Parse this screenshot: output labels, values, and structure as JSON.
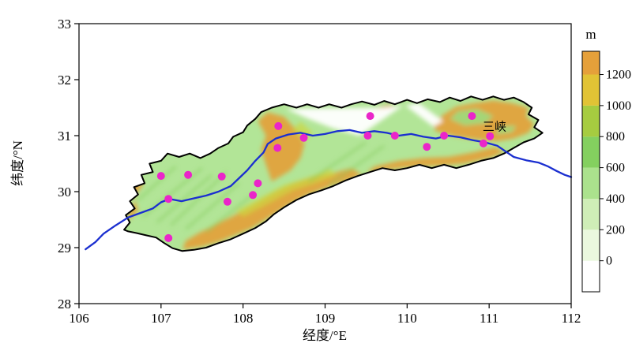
{
  "figure": {
    "xlabel": "经度/°E",
    "ylabel": "纬度/°N",
    "annotation": {
      "text": "三峡",
      "lon": 110.92,
      "lat": 31.09
    }
  },
  "axes": {
    "lon_min": 106,
    "lon_max": 112,
    "lat_min": 28,
    "lat_max": 33,
    "x_ticks": [
      106,
      107,
      108,
      109,
      110,
      111,
      112
    ],
    "y_ticks": [
      28,
      29,
      30,
      31,
      32,
      33
    ]
  },
  "colorbar": {
    "title": "m",
    "min": -200,
    "max": 1350,
    "tick_values": [
      0,
      200,
      400,
      600,
      800,
      1000,
      1200
    ],
    "segments": [
      {
        "v0": -200,
        "v1": 0,
        "color": "#ffffff"
      },
      {
        "v0": 0,
        "v1": 200,
        "color": "#eaf8de"
      },
      {
        "v0": 200,
        "v1": 400,
        "color": "#cfeeb7"
      },
      {
        "v0": 400,
        "v1": 600,
        "color": "#abe28d"
      },
      {
        "v0": 600,
        "v1": 800,
        "color": "#84d05f"
      },
      {
        "v0": 800,
        "v1": 1000,
        "color": "#a6cc40"
      },
      {
        "v0": 1000,
        "v1": 1200,
        "color": "#e1c335"
      },
      {
        "v0": 1200,
        "v1": 1350,
        "color": "#e5a03a"
      }
    ]
  },
  "map": {
    "colors": {
      "base": "#b2e597",
      "orange": "#e2a23c",
      "yellow": "#cdd63e",
      "green_patch": "#9ddb7e",
      "ridge": "#7fc857",
      "white": "#ffffff",
      "river": "#1b2fd0",
      "station": "#ea25c9",
      "outline": "#000000"
    },
    "basin_outline": [
      [
        106.55,
        29.32
      ],
      [
        106.62,
        29.45
      ],
      [
        106.57,
        29.58
      ],
      [
        106.68,
        29.7
      ],
      [
        106.62,
        29.83
      ],
      [
        106.72,
        29.95
      ],
      [
        106.67,
        30.08
      ],
      [
        106.8,
        30.15
      ],
      [
        106.76,
        30.3
      ],
      [
        106.9,
        30.35
      ],
      [
        106.86,
        30.5
      ],
      [
        107.0,
        30.55
      ],
      [
        107.08,
        30.68
      ],
      [
        107.22,
        30.62
      ],
      [
        107.35,
        30.68
      ],
      [
        107.48,
        30.6
      ],
      [
        107.6,
        30.68
      ],
      [
        107.7,
        30.78
      ],
      [
        107.82,
        30.86
      ],
      [
        107.88,
        30.98
      ],
      [
        108.0,
        31.06
      ],
      [
        108.05,
        31.18
      ],
      [
        108.15,
        31.3
      ],
      [
        108.22,
        31.42
      ],
      [
        108.35,
        31.5
      ],
      [
        108.5,
        31.56
      ],
      [
        108.65,
        31.5
      ],
      [
        108.78,
        31.56
      ],
      [
        108.92,
        31.5
      ],
      [
        109.05,
        31.56
      ],
      [
        109.2,
        31.5
      ],
      [
        109.32,
        31.56
      ],
      [
        109.45,
        31.61
      ],
      [
        109.6,
        31.55
      ],
      [
        109.72,
        31.62
      ],
      [
        109.85,
        31.56
      ],
      [
        110.0,
        31.64
      ],
      [
        110.12,
        31.58
      ],
      [
        110.25,
        31.65
      ],
      [
        110.4,
        31.6
      ],
      [
        110.52,
        31.68
      ],
      [
        110.65,
        31.62
      ],
      [
        110.78,
        31.7
      ],
      [
        110.92,
        31.64
      ],
      [
        111.05,
        31.7
      ],
      [
        111.18,
        31.64
      ],
      [
        111.3,
        31.68
      ],
      [
        111.42,
        31.6
      ],
      [
        111.52,
        31.5
      ],
      [
        111.48,
        31.38
      ],
      [
        111.6,
        31.28
      ],
      [
        111.55,
        31.15
      ],
      [
        111.65,
        31.05
      ],
      [
        111.55,
        30.95
      ],
      [
        111.42,
        30.88
      ],
      [
        111.3,
        30.78
      ],
      [
        111.18,
        30.68
      ],
      [
        111.05,
        30.6
      ],
      [
        110.9,
        30.55
      ],
      [
        110.75,
        30.48
      ],
      [
        110.6,
        30.42
      ],
      [
        110.45,
        30.48
      ],
      [
        110.3,
        30.42
      ],
      [
        110.15,
        30.48
      ],
      [
        110.0,
        30.42
      ],
      [
        109.85,
        30.38
      ],
      [
        109.7,
        30.42
      ],
      [
        109.55,
        30.35
      ],
      [
        109.4,
        30.28
      ],
      [
        109.25,
        30.2
      ],
      [
        109.1,
        30.1
      ],
      [
        108.95,
        30.02
      ],
      [
        108.8,
        29.95
      ],
      [
        108.65,
        29.85
      ],
      [
        108.5,
        29.72
      ],
      [
        108.38,
        29.6
      ],
      [
        108.28,
        29.47
      ],
      [
        108.15,
        29.35
      ],
      [
        108.0,
        29.25
      ],
      [
        107.85,
        29.15
      ],
      [
        107.7,
        29.08
      ],
      [
        107.55,
        29.0
      ],
      [
        107.4,
        28.96
      ],
      [
        107.26,
        28.94
      ],
      [
        107.14,
        28.99
      ],
      [
        107.04,
        29.08
      ],
      [
        106.94,
        29.18
      ],
      [
        106.82,
        29.22
      ],
      [
        106.7,
        29.26
      ],
      [
        106.6,
        29.29
      ]
    ],
    "orange_patches": [
      [
        [
          107.26,
          28.96
        ],
        [
          107.5,
          29.02
        ],
        [
          107.7,
          29.1
        ],
        [
          107.9,
          29.22
        ],
        [
          108.1,
          29.34
        ],
        [
          108.3,
          29.52
        ],
        [
          108.45,
          29.66
        ],
        [
          108.6,
          29.8
        ],
        [
          108.8,
          29.95
        ],
        [
          109.0,
          30.06
        ],
        [
          109.2,
          30.16
        ],
        [
          109.45,
          30.3
        ],
        [
          109.32,
          30.42
        ],
        [
          109.08,
          30.32
        ],
        [
          108.85,
          30.27
        ],
        [
          108.6,
          30.14
        ],
        [
          108.4,
          30.0
        ],
        [
          108.24,
          29.86
        ],
        [
          108.05,
          29.7
        ],
        [
          107.86,
          29.55
        ],
        [
          107.65,
          29.4
        ],
        [
          107.46,
          29.26
        ],
        [
          107.3,
          29.12
        ]
      ],
      [
        [
          108.35,
          30.18
        ],
        [
          108.58,
          30.38
        ],
        [
          108.7,
          30.6
        ],
        [
          108.75,
          30.85
        ],
        [
          108.65,
          31.1
        ],
        [
          108.5,
          31.34
        ],
        [
          108.3,
          31.42
        ],
        [
          108.18,
          31.26
        ],
        [
          108.28,
          31.0
        ],
        [
          108.22,
          30.74
        ],
        [
          108.28,
          30.48
        ]
      ],
      [
        [
          110.35,
          31.08
        ],
        [
          110.6,
          30.98
        ],
        [
          110.85,
          30.93
        ],
        [
          111.1,
          30.9
        ],
        [
          111.3,
          30.95
        ],
        [
          111.48,
          31.05
        ],
        [
          111.55,
          31.2
        ],
        [
          111.45,
          31.35
        ],
        [
          111.48,
          31.5
        ],
        [
          111.28,
          31.58
        ],
        [
          111.05,
          31.63
        ],
        [
          110.82,
          31.58
        ],
        [
          110.6,
          31.52
        ],
        [
          110.45,
          31.38
        ],
        [
          110.3,
          31.22
        ]
      ],
      [
        [
          109.62,
          31.4
        ],
        [
          109.88,
          31.5
        ],
        [
          109.78,
          31.56
        ],
        [
          109.58,
          31.48
        ]
      ],
      [
        [
          106.6,
          29.48
        ],
        [
          106.72,
          29.66
        ],
        [
          106.67,
          29.92
        ],
        [
          106.78,
          30.12
        ],
        [
          106.72,
          30.3
        ],
        [
          106.63,
          30.05
        ],
        [
          106.68,
          29.82
        ],
        [
          106.6,
          29.62
        ]
      ],
      [
        [
          109.5,
          30.33
        ],
        [
          109.8,
          30.4
        ],
        [
          110.1,
          30.45
        ],
        [
          110.4,
          30.46
        ],
        [
          110.7,
          30.5
        ],
        [
          111.0,
          30.6
        ],
        [
          111.18,
          30.7
        ],
        [
          111.08,
          30.8
        ],
        [
          110.8,
          30.7
        ],
        [
          110.5,
          30.62
        ],
        [
          110.2,
          30.6
        ],
        [
          109.9,
          30.55
        ],
        [
          109.6,
          30.45
        ]
      ]
    ],
    "yellow_patches": [
      [
        [
          108.0,
          29.55
        ],
        [
          108.3,
          29.78
        ],
        [
          108.6,
          30.02
        ],
        [
          108.9,
          30.16
        ],
        [
          109.15,
          30.3
        ],
        [
          109.05,
          30.4
        ],
        [
          108.78,
          30.24
        ],
        [
          108.5,
          30.12
        ],
        [
          108.22,
          29.9
        ],
        [
          107.92,
          29.66
        ]
      ],
      [
        [
          108.6,
          31.1
        ],
        [
          108.75,
          30.9
        ],
        [
          108.85,
          31.05
        ],
        [
          108.7,
          31.25
        ]
      ]
    ],
    "green_patches": [
      [
        [
          110.52,
          31.3
        ],
        [
          110.7,
          31.18
        ],
        [
          110.95,
          31.22
        ],
        [
          111.05,
          31.35
        ],
        [
          110.85,
          31.48
        ],
        [
          110.62,
          31.44
        ]
      ],
      [
        [
          111.08,
          31.02
        ],
        [
          111.28,
          31.06
        ],
        [
          111.33,
          31.18
        ],
        [
          111.13,
          31.16
        ]
      ]
    ],
    "white_patches": [
      [
        [
          108.52,
          31.48
        ],
        [
          109.7,
          31.5
        ],
        [
          109.95,
          31.54
        ],
        [
          109.42,
          31.0
        ],
        [
          109.08,
          31.14
        ],
        [
          108.8,
          31.3
        ]
      ],
      [
        [
          109.98,
          31.54
        ],
        [
          110.32,
          31.16
        ],
        [
          110.44,
          31.26
        ],
        [
          110.14,
          31.58
        ]
      ]
    ],
    "ridges": [
      [
        [
          106.78,
          29.55
        ],
        [
          107.5,
          30.42
        ]
      ],
      [
        [
          106.95,
          29.45
        ],
        [
          107.62,
          30.3
        ]
      ],
      [
        [
          107.12,
          29.4
        ],
        [
          107.8,
          30.35
        ]
      ],
      [
        [
          107.3,
          29.33
        ],
        [
          107.95,
          30.15
        ]
      ],
      [
        [
          107.55,
          29.28
        ],
        [
          108.1,
          29.92
        ]
      ],
      [
        [
          106.72,
          29.85
        ],
        [
          107.18,
          30.45
        ]
      ],
      [
        [
          108.8,
          30.18
        ],
        [
          109.5,
          30.88
        ]
      ],
      [
        [
          109.05,
          30.12
        ],
        [
          109.72,
          30.82
        ]
      ]
    ],
    "river": [
      [
        106.08,
        28.97
      ],
      [
        106.2,
        29.1
      ],
      [
        106.3,
        29.25
      ],
      [
        106.45,
        29.4
      ],
      [
        106.6,
        29.54
      ],
      [
        106.75,
        29.62
      ],
      [
        106.9,
        29.7
      ],
      [
        107.0,
        29.81
      ],
      [
        107.1,
        29.87
      ],
      [
        107.25,
        29.83
      ],
      [
        107.4,
        29.88
      ],
      [
        107.55,
        29.93
      ],
      [
        107.7,
        30.0
      ],
      [
        107.85,
        30.1
      ],
      [
        107.95,
        30.24
      ],
      [
        108.05,
        30.38
      ],
      [
        108.15,
        30.55
      ],
      [
        108.25,
        30.7
      ],
      [
        108.3,
        30.85
      ],
      [
        108.4,
        30.95
      ],
      [
        108.55,
        31.02
      ],
      [
        108.7,
        31.05
      ],
      [
        108.85,
        31.0
      ],
      [
        109.0,
        31.03
      ],
      [
        109.15,
        31.08
      ],
      [
        109.3,
        31.1
      ],
      [
        109.45,
        31.05
      ],
      [
        109.6,
        31.08
      ],
      [
        109.75,
        31.05
      ],
      [
        109.9,
        31.0
      ],
      [
        110.05,
        31.03
      ],
      [
        110.2,
        30.98
      ],
      [
        110.35,
        30.95
      ],
      [
        110.5,
        31.0
      ],
      [
        110.65,
        30.97
      ],
      [
        110.8,
        30.92
      ],
      [
        110.95,
        30.88
      ],
      [
        111.1,
        30.82
      ],
      [
        111.2,
        30.72
      ],
      [
        111.3,
        30.62
      ],
      [
        111.45,
        30.56
      ],
      [
        111.6,
        30.52
      ],
      [
        111.72,
        30.45
      ],
      [
        111.82,
        30.37
      ],
      [
        111.92,
        30.3
      ],
      [
        112.0,
        30.26
      ]
    ],
    "stations": [
      [
        107.09,
        29.17
      ],
      [
        107.0,
        30.28
      ],
      [
        107.09,
        29.87
      ],
      [
        107.33,
        30.3
      ],
      [
        107.74,
        30.27
      ],
      [
        107.81,
        29.82
      ],
      [
        108.12,
        29.94
      ],
      [
        108.18,
        30.15
      ],
      [
        108.43,
        31.17
      ],
      [
        108.42,
        30.78
      ],
      [
        108.74,
        30.96
      ],
      [
        109.52,
        31.0
      ],
      [
        109.55,
        31.35
      ],
      [
        109.85,
        31.0
      ],
      [
        110.24,
        30.8
      ],
      [
        110.45,
        31.0
      ],
      [
        110.79,
        31.35
      ],
      [
        110.93,
        30.86
      ],
      [
        111.01,
        30.99
      ]
    ]
  }
}
